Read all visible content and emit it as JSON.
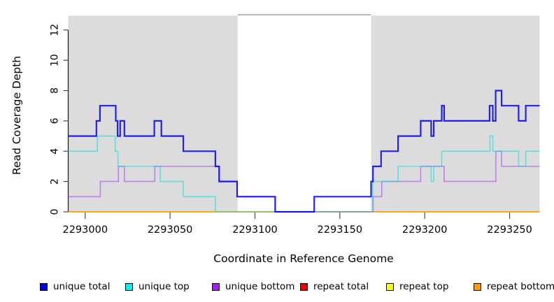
{
  "chart_data": {
    "type": "line",
    "subtype": "step-after",
    "title": "",
    "xlabel": "Coordinate in Reference Genome",
    "ylabel": "Read Coverage Depth",
    "xlim": [
      2292990,
      2293267.7
    ],
    "ylim": [
      0,
      13
    ],
    "x_ticks": [
      2293000,
      2293050,
      2293100,
      2293150,
      2293200,
      2293250
    ],
    "y_ticks": [
      0,
      2,
      4,
      6,
      8,
      10,
      12
    ],
    "grid": false,
    "legend_position": "bottom",
    "plot_background": "#ffffff",
    "shaded_regions": {
      "color": "#dcdcdc",
      "ranges": [
        [
          2292990,
          2293089.8
        ],
        [
          2293168.4,
          2293267.7
        ]
      ],
      "gap_top_border_color": "#8f8f8f"
    },
    "axis_color": "#1a1a1a",
    "tick_color": "#4a4a4a",
    "series": [
      {
        "name": "unique total",
        "legend_color": "#0000ee",
        "line_color": "#0000ee",
        "opacity": 0.85,
        "width": 2.2,
        "draw_order": 6,
        "points": [
          [
            2292990,
            5
          ],
          [
            2293006.6,
            6
          ],
          [
            2293008.7,
            7
          ],
          [
            2293018.0,
            6
          ],
          [
            2293019.1,
            5
          ],
          [
            2293020.6,
            6
          ],
          [
            2293023.1,
            5
          ],
          [
            2293040.7,
            6
          ],
          [
            2293044.9,
            5
          ],
          [
            2293057.8,
            4
          ],
          [
            2293076.7,
            3
          ],
          [
            2293078.9,
            2
          ],
          [
            2293089.5,
            1
          ],
          [
            2293111.9,
            0
          ],
          [
            2293134.9,
            1
          ],
          [
            2293168.4,
            2
          ],
          [
            2293169.5,
            3
          ],
          [
            2293174.3,
            4
          ],
          [
            2293184.3,
            5
          ],
          [
            2293197.6,
            6
          ],
          [
            2293203.8,
            5
          ],
          [
            2293205.3,
            6
          ],
          [
            2293210.0,
            7
          ],
          [
            2293211.4,
            6
          ],
          [
            2293238.2,
            7
          ],
          [
            2293240.1,
            6
          ],
          [
            2293241.8,
            8
          ],
          [
            2293245.3,
            7
          ],
          [
            2293255.3,
            6
          ],
          [
            2293259.5,
            7
          ]
        ]
      },
      {
        "name": "unique top",
        "legend_color": "#00eeee",
        "line_color": "#00dddd",
        "opacity": 0.55,
        "width": 1.6,
        "draw_order": 5,
        "points": [
          [
            2292990,
            4
          ],
          [
            2293007.2,
            5
          ],
          [
            2293017.7,
            4
          ],
          [
            2293019.3,
            3
          ],
          [
            2293044.2,
            2
          ],
          [
            2293057.8,
            1
          ],
          [
            2293076.7,
            0
          ],
          [
            2293169.3,
            2
          ],
          [
            2293184.3,
            3
          ],
          [
            2293203.8,
            2
          ],
          [
            2293205.3,
            3
          ],
          [
            2293210.0,
            4
          ],
          [
            2293238.4,
            5
          ],
          [
            2293240.1,
            4
          ],
          [
            2293255.3,
            3
          ],
          [
            2293259.5,
            4
          ]
        ]
      },
      {
        "name": "unique bottom",
        "legend_color": "#a020f0",
        "line_color": "#b040ff",
        "opacity": 0.6,
        "width": 1.6,
        "draw_order": 4,
        "points": [
          [
            2292990,
            1
          ],
          [
            2293008.9,
            2
          ],
          [
            2293019.6,
            3
          ],
          [
            2293023.1,
            2
          ],
          [
            2293041.0,
            3
          ],
          [
            2293078.9,
            2
          ],
          [
            2293089.5,
            1
          ],
          [
            2293111.9,
            0
          ],
          [
            2293169.6,
            1
          ],
          [
            2293174.7,
            2
          ],
          [
            2293197.6,
            3
          ],
          [
            2293211.4,
            2
          ],
          [
            2293241.9,
            4
          ],
          [
            2293245.3,
            3
          ]
        ]
      },
      {
        "name": "repeat total",
        "legend_color": "#ee0000",
        "line_color": "#ee3333",
        "opacity": 0.8,
        "width": 1.2,
        "draw_order": 1,
        "points": [
          [
            2292990,
            0
          ]
        ]
      },
      {
        "name": "repeat top",
        "legend_color": "#ffff00",
        "line_color": "#ffff00",
        "opacity": 0.9,
        "width": 1.2,
        "draw_order": 2,
        "points": [
          [
            2292990,
            0
          ]
        ]
      },
      {
        "name": "repeat bottom",
        "legend_color": "#ff9d00",
        "line_color": "#ff9d00",
        "opacity": 0.95,
        "width": 1.8,
        "draw_order": 3,
        "points": [
          [
            2292990,
            0
          ]
        ]
      }
    ]
  }
}
